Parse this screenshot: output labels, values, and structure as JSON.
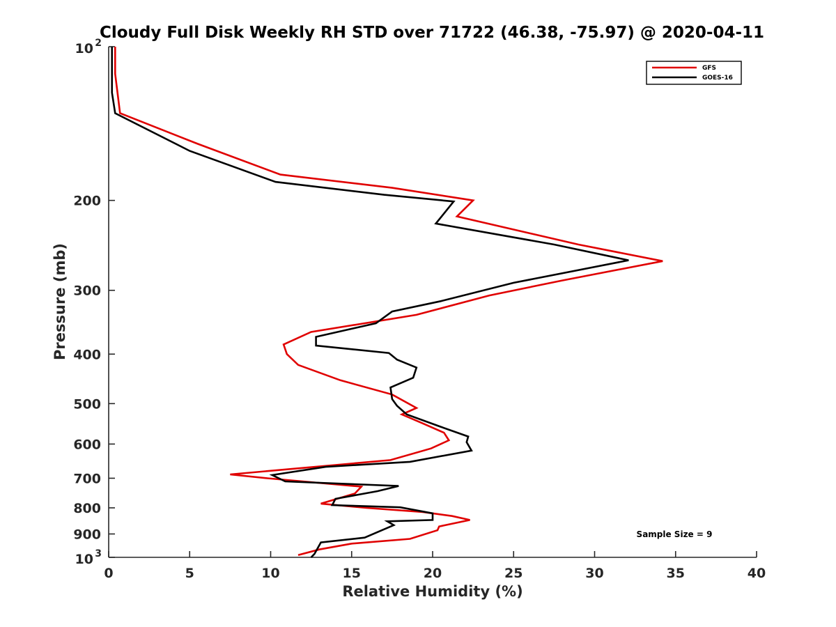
{
  "chart_data": {
    "type": "line",
    "title": "Cloudy Full Disk Weekly RH STD over 71722 (46.38, -75.97) @ 2020-04-11",
    "xlabel": "Relative Humidity (%)",
    "ylabel": "Pressure (mb)",
    "xlim": [
      0,
      40
    ],
    "ylim": [
      100,
      1000
    ],
    "yscale": "log",
    "yreversed": true,
    "grid": false,
    "legend_location": "top-right",
    "x_ticks": [
      0,
      5,
      10,
      15,
      20,
      25,
      30,
      35,
      40
    ],
    "x_tick_labels": [
      "0",
      "5",
      "10",
      "15",
      "20",
      "25",
      "30",
      "35",
      "40"
    ],
    "y_ticks": [
      100,
      200,
      300,
      400,
      500,
      600,
      700,
      800,
      900,
      1000
    ],
    "y_tick_labels": [
      {
        "base": "10",
        "exp": "2"
      },
      {
        "base": "200"
      },
      {
        "base": "300"
      },
      {
        "base": "400"
      },
      {
        "base": "500"
      },
      {
        "base": "600"
      },
      {
        "base": "700"
      },
      {
        "base": "800"
      },
      {
        "base": "900"
      },
      {
        "base": "10",
        "exp": "3"
      }
    ],
    "annotation": "Sample Size = 9",
    "series": [
      {
        "name": "GFS",
        "color": "#e00000",
        "points": [
          [
            0.4,
            100
          ],
          [
            0.4,
            113
          ],
          [
            0.7,
            135
          ],
          [
            5.5,
            155
          ],
          [
            10.6,
            178
          ],
          [
            17.5,
            189
          ],
          [
            22.5,
            200
          ],
          [
            21.5,
            215
          ],
          [
            29.0,
            244
          ],
          [
            34.2,
            263
          ],
          [
            28.0,
            287
          ],
          [
            23.5,
            307
          ],
          [
            19.0,
            335
          ],
          [
            12.5,
            362
          ],
          [
            10.8,
            383
          ],
          [
            11.0,
            400
          ],
          [
            11.7,
            420
          ],
          [
            14.3,
            450
          ],
          [
            17.5,
            480
          ],
          [
            19.0,
            510
          ],
          [
            18.1,
            525
          ],
          [
            19.3,
            545
          ],
          [
            20.7,
            570
          ],
          [
            21.0,
            590
          ],
          [
            19.9,
            612
          ],
          [
            17.4,
            645
          ],
          [
            7.5,
            688
          ],
          [
            9.8,
            700
          ],
          [
            15.6,
            727
          ],
          [
            15.2,
            750
          ],
          [
            13.1,
            785
          ],
          [
            15.9,
            800
          ],
          [
            19.4,
            815
          ],
          [
            21.2,
            830
          ],
          [
            22.3,
            845
          ],
          [
            20.4,
            870
          ],
          [
            20.3,
            885
          ],
          [
            18.6,
            920
          ],
          [
            15.0,
            940
          ],
          [
            13.0,
            965
          ],
          [
            11.7,
            990
          ]
        ]
      },
      {
        "name": "GOES-16",
        "color": "#000000",
        "points": [
          [
            0.2,
            100
          ],
          [
            0.2,
            123
          ],
          [
            0.4,
            135
          ],
          [
            5.0,
            160
          ],
          [
            10.3,
            184
          ],
          [
            17.0,
            195
          ],
          [
            21.3,
            201
          ],
          [
            20.2,
            222
          ],
          [
            27.5,
            244
          ],
          [
            32.1,
            262
          ],
          [
            25.0,
            290
          ],
          [
            20.5,
            315
          ],
          [
            17.5,
            330
          ],
          [
            16.5,
            348
          ],
          [
            12.8,
            370
          ],
          [
            12.8,
            385
          ],
          [
            17.3,
            398
          ],
          [
            17.8,
            410
          ],
          [
            19.0,
            425
          ],
          [
            18.8,
            445
          ],
          [
            17.4,
            465
          ],
          [
            17.5,
            490
          ],
          [
            17.8,
            505
          ],
          [
            18.4,
            525
          ],
          [
            20.5,
            555
          ],
          [
            22.2,
            580
          ],
          [
            22.1,
            595
          ],
          [
            22.4,
            618
          ],
          [
            18.6,
            650
          ],
          [
            13.4,
            665
          ],
          [
            10.1,
            690
          ],
          [
            10.9,
            710
          ],
          [
            17.9,
            725
          ],
          [
            16.6,
            742
          ],
          [
            14.0,
            768
          ],
          [
            13.8,
            790
          ],
          [
            18.0,
            798
          ],
          [
            20.0,
            820
          ],
          [
            20.0,
            845
          ],
          [
            17.2,
            850
          ],
          [
            17.6,
            865
          ],
          [
            15.8,
            915
          ],
          [
            13.1,
            935
          ],
          [
            12.7,
            985
          ],
          [
            12.5,
            1000
          ]
        ]
      }
    ]
  }
}
